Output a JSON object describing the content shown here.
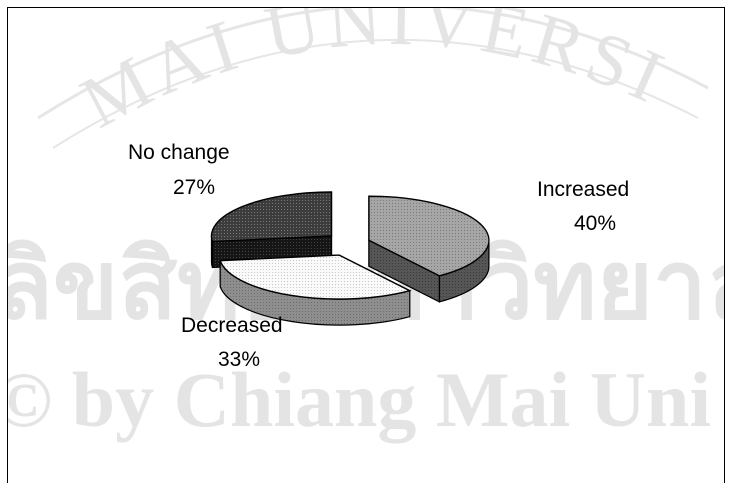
{
  "watermark": {
    "arc_text": "MAI UNIVERSI",
    "thai_text": "ลิขสิทธิ์มหาวิทยาลัยเชียงใหม่",
    "copyright_text": "© by Chiang Mai Uni"
  },
  "chart_data": {
    "type": "pie",
    "style": "3d-exploded",
    "title": "",
    "categories": [
      "Increased",
      "Decreased",
      "No change"
    ],
    "values": [
      40,
      33,
      27
    ],
    "labels": [
      "Increased",
      "Decreased",
      "No change"
    ],
    "value_labels": [
      "40%",
      "33%",
      "27%"
    ],
    "colors": {
      "Increased": "#9a9a9a",
      "Decreased": "#f4f4f4",
      "No change": "#3a3a3a"
    },
    "legend": "none"
  }
}
